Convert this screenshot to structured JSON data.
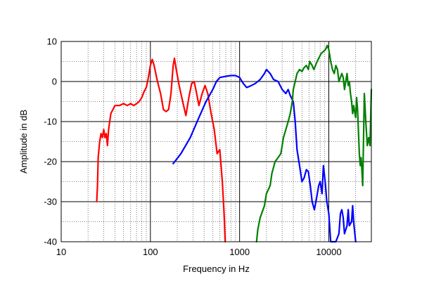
{
  "chart_data": {
    "type": "line",
    "title": "",
    "xlabel": "Frequency in Hz",
    "ylabel": "Amplitude in dB",
    "xscale": "log",
    "xlim": [
      10,
      30000
    ],
    "ylim": [
      -40,
      10
    ],
    "grid": true,
    "grid_style": "dotted",
    "x_major_ticks": [
      10,
      100,
      1000,
      10000
    ],
    "x_tick_labels": [
      "10",
      "100",
      "1000",
      "10000"
    ],
    "y_ticks": [
      10,
      0,
      -10,
      -20,
      -30,
      -40
    ],
    "y_tick_labels": [
      "10",
      "0",
      "-10",
      "-20",
      "-30",
      "-40"
    ],
    "series": [
      {
        "color": "#ff0000",
        "points": [
          [
            25,
            -30
          ],
          [
            25.5,
            -26
          ],
          [
            26,
            -19
          ],
          [
            27,
            -15
          ],
          [
            28,
            -13
          ],
          [
            29,
            -14
          ],
          [
            30,
            -12
          ],
          [
            31,
            -14
          ],
          [
            32,
            -13
          ],
          [
            33,
            -16
          ],
          [
            34,
            -12
          ],
          [
            36,
            -8
          ],
          [
            38,
            -7
          ],
          [
            40,
            -6
          ],
          [
            45,
            -6
          ],
          [
            50,
            -5.5
          ],
          [
            55,
            -6
          ],
          [
            60,
            -5.5
          ],
          [
            65,
            -6
          ],
          [
            70,
            -5.5
          ],
          [
            75,
            -5
          ],
          [
            80,
            -4
          ],
          [
            85,
            -2.5
          ],
          [
            90,
            -1.5
          ],
          [
            95,
            1
          ],
          [
            100,
            4
          ],
          [
            105,
            5.5
          ],
          [
            110,
            4
          ],
          [
            120,
            0
          ],
          [
            130,
            -3
          ],
          [
            140,
            -7
          ],
          [
            150,
            -7.5
          ],
          [
            160,
            -7
          ],
          [
            170,
            -3
          ],
          [
            180,
            4
          ],
          [
            186,
            5.8
          ],
          [
            195,
            3
          ],
          [
            210,
            -1
          ],
          [
            230,
            -5
          ],
          [
            250,
            -8.5
          ],
          [
            270,
            -4
          ],
          [
            290,
            -0.5
          ],
          [
            310,
            0
          ],
          [
            330,
            -3
          ],
          [
            350,
            -6
          ],
          [
            380,
            -3
          ],
          [
            410,
            -1
          ],
          [
            440,
            -3
          ],
          [
            480,
            -8
          ],
          [
            520,
            -12
          ],
          [
            560,
            -18
          ],
          [
            600,
            -17
          ],
          [
            640,
            -25
          ],
          [
            670,
            -33
          ],
          [
            690,
            -40
          ]
        ]
      },
      {
        "color": "#0000ff",
        "points": [
          [
            180,
            -20.5
          ],
          [
            220,
            -18
          ],
          [
            280,
            -14
          ],
          [
            350,
            -9
          ],
          [
            420,
            -5
          ],
          [
            500,
            -2
          ],
          [
            550,
            0
          ],
          [
            600,
            1
          ],
          [
            700,
            1.3
          ],
          [
            800,
            1.5
          ],
          [
            900,
            1.5
          ],
          [
            1000,
            1
          ],
          [
            1100,
            -0.5
          ],
          [
            1200,
            -1.5
          ],
          [
            1300,
            -1.2
          ],
          [
            1500,
            -0.5
          ],
          [
            1700,
            0.5
          ],
          [
            1900,
            2
          ],
          [
            2000,
            3
          ],
          [
            2200,
            2
          ],
          [
            2400,
            0.5
          ],
          [
            2700,
            0
          ],
          [
            3000,
            -2
          ],
          [
            3300,
            -3
          ],
          [
            3500,
            -2
          ],
          [
            3700,
            -3.5
          ],
          [
            4000,
            -5
          ],
          [
            4200,
            -10
          ],
          [
            4400,
            -17
          ],
          [
            4700,
            -21
          ],
          [
            5000,
            -25
          ],
          [
            5300,
            -24
          ],
          [
            5600,
            -22
          ],
          [
            5900,
            -22.5
          ],
          [
            6200,
            -26
          ],
          [
            6500,
            -30
          ],
          [
            6900,
            -32
          ],
          [
            7300,
            -29
          ],
          [
            7700,
            -26
          ],
          [
            8000,
            -25
          ],
          [
            8400,
            -28
          ],
          [
            8700,
            -21
          ],
          [
            9100,
            -25
          ],
          [
            9500,
            -30
          ],
          [
            10000,
            -33
          ],
          [
            10500,
            -40
          ],
          [
            12000,
            -40
          ],
          [
            13000,
            -38
          ],
          [
            13500,
            -33
          ],
          [
            14000,
            -32
          ],
          [
            14500,
            -34
          ],
          [
            15000,
            -38
          ],
          [
            16000,
            -36
          ],
          [
            16500,
            -32
          ],
          [
            17000,
            -36
          ],
          [
            18000,
            -35
          ],
          [
            18500,
            -31
          ],
          [
            19000,
            -35
          ],
          [
            20000,
            -40
          ]
        ]
      },
      {
        "color": "#008000",
        "points": [
          [
            1550,
            -40
          ],
          [
            1600,
            -37
          ],
          [
            1700,
            -34
          ],
          [
            1900,
            -31
          ],
          [
            2000,
            -28
          ],
          [
            2200,
            -26
          ],
          [
            2300,
            -23
          ],
          [
            2500,
            -20
          ],
          [
            2700,
            -19
          ],
          [
            2900,
            -18
          ],
          [
            3000,
            -16
          ],
          [
            3100,
            -14
          ],
          [
            3300,
            -12
          ],
          [
            3500,
            -10
          ],
          [
            3700,
            -8
          ],
          [
            3900,
            -5
          ],
          [
            4000,
            -2
          ],
          [
            4200,
            0
          ],
          [
            4400,
            2
          ],
          [
            4700,
            3
          ],
          [
            5000,
            2.5
          ],
          [
            5300,
            3.5
          ],
          [
            5600,
            4
          ],
          [
            5900,
            3
          ],
          [
            6100,
            5
          ],
          [
            6500,
            4
          ],
          [
            6800,
            3
          ],
          [
            7100,
            4
          ],
          [
            7400,
            5
          ],
          [
            7800,
            6
          ],
          [
            8200,
            7
          ],
          [
            8700,
            7.5
          ],
          [
            9200,
            8
          ],
          [
            9600,
            9
          ],
          [
            10000,
            8
          ],
          [
            10500,
            5
          ],
          [
            11000,
            3
          ],
          [
            11500,
            2
          ],
          [
            12000,
            4
          ],
          [
            12500,
            3
          ],
          [
            13000,
            0
          ],
          [
            14000,
            2
          ],
          [
            14500,
            1
          ],
          [
            15000,
            -2
          ],
          [
            16000,
            2
          ],
          [
            16500,
            -1
          ],
          [
            17000,
            0
          ],
          [
            17500,
            -3
          ],
          [
            18000,
            -5
          ],
          [
            18500,
            -8
          ],
          [
            19000,
            -6
          ],
          [
            20000,
            -9
          ],
          [
            20500,
            -4
          ],
          [
            21000,
            -7
          ],
          [
            22000,
            -18
          ],
          [
            22500,
            -21
          ],
          [
            23000,
            -19
          ],
          [
            23500,
            -22
          ],
          [
            24000,
            -26
          ],
          [
            25000,
            -3
          ],
          [
            26000,
            -10
          ],
          [
            27000,
            -16
          ],
          [
            28000,
            -14
          ],
          [
            29000,
            -16
          ],
          [
            30000,
            -2
          ]
        ]
      }
    ]
  }
}
